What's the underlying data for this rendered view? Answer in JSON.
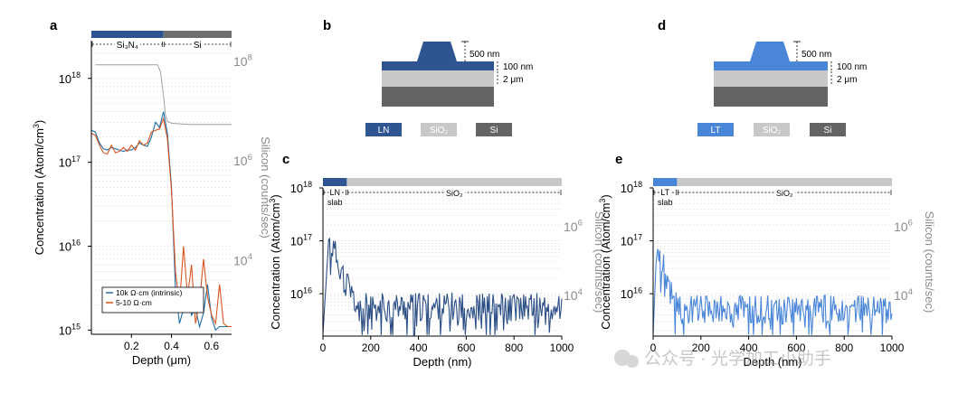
{
  "panels": {
    "a": {
      "letter": "a"
    },
    "b": {
      "letter": "b"
    },
    "c": {
      "letter": "c"
    },
    "d": {
      "letter": "d"
    },
    "e": {
      "letter": "e"
    }
  },
  "schematics": {
    "b": {
      "ridge_dim": "500 nm",
      "slab_dim": "100 nm",
      "oxide_dim": "2 μm",
      "legend": [
        {
          "label": "LN",
          "color": "#2e5591"
        },
        {
          "label": "SiO₂",
          "color": "#c8c8c8"
        },
        {
          "label": "Si",
          "color": "#646464"
        }
      ],
      "core_color": "#2e5591"
    },
    "d": {
      "ridge_dim": "500 nm",
      "slab_dim": "100 nm",
      "oxide_dim": "2 μm",
      "legend": [
        {
          "label": "LT",
          "color": "#4a86d8"
        },
        {
          "label": "SiO₂",
          "color": "#c8c8c8"
        },
        {
          "label": "Si",
          "color": "#646464"
        }
      ],
      "core_color": "#4a86d8"
    }
  },
  "colors": {
    "series_blue": "#1f6fa8",
    "series_orange": "#d9541e",
    "silicon_gray": "#a0a0a0",
    "ln_line": "#2c4f86",
    "lt_line": "#4a86d8",
    "axis_gray": "#8c8c8c"
  },
  "watermark": {
    "text": "公众号 · 光学加工小助手"
  },
  "chart_data": [
    {
      "id": "a",
      "type": "line",
      "xlabel": "Depth (μm)",
      "ylabel": "Concentration (Atom/cm³)",
      "y2label": "Silicon (counts/sec)",
      "xlim": [
        0,
        0.7
      ],
      "ylim_log": [
        14.95,
        18.45
      ],
      "y2lim_log": [
        2.5,
        8.4
      ],
      "xticks": [
        0.2,
        0.4,
        0.6
      ],
      "xtick_labels": [
        "0.2",
        "0.4",
        "0.6"
      ],
      "yticks": [
        {
          "label": "10",
          "sup": "15",
          "v": 15
        },
        {
          "label": "10",
          "sup": "16",
          "v": 16
        },
        {
          "label": "10",
          "sup": "17",
          "v": 17
        },
        {
          "label": "10",
          "sup": "18",
          "v": 18
        }
      ],
      "y2ticks": [
        {
          "label": "10",
          "sup": "4",
          "v": 4
        },
        {
          "label": "10",
          "sup": "6",
          "v": 6
        },
        {
          "label": "10",
          "sup": "8",
          "v": 8
        }
      ],
      "material_bar": [
        {
          "label": "Si₃N₄",
          "from": 0,
          "to": 0.36,
          "color": "#2e5591"
        },
        {
          "label": "Si",
          "from": 0.36,
          "to": 0.7,
          "color": "#6e6e6e"
        }
      ],
      "legend": [
        {
          "label": "10k Ω·cm (intrinsic)",
          "color": "#1f6fa8"
        },
        {
          "label": "5-10 Ω·cm",
          "color": "#d9541e"
        }
      ],
      "series": [
        {
          "name": "10k Ω·cm (intrinsic)",
          "color": "#1f6fa8",
          "x": [
            0.0,
            0.02,
            0.04,
            0.06,
            0.08,
            0.1,
            0.12,
            0.14,
            0.16,
            0.18,
            0.2,
            0.22,
            0.24,
            0.26,
            0.28,
            0.3,
            0.32,
            0.34,
            0.36,
            0.38,
            0.4,
            0.42,
            0.44,
            0.46,
            0.48,
            0.5,
            0.52,
            0.54,
            0.56,
            0.58,
            0.6,
            0.62,
            0.64,
            0.66,
            0.68,
            0.7
          ],
          "y": [
            2.4e+17,
            2.3e+17,
            1.7e+17,
            1.45e+17,
            1.4e+17,
            1.5e+17,
            1.45e+17,
            1.4e+17,
            1.35e+17,
            1.4e+17,
            1.4e+17,
            1.5e+17,
            1.7e+17,
            1.6e+17,
            1.55e+17,
            2e+17,
            3e+17,
            2.6e+17,
            4e+17,
            2.2e+17,
            5e+16,
            3000000000000000.0,
            1200000000000000.0,
            1800000000000000.0,
            3000000000000000.0,
            1500000000000000.0,
            1800000000000000.0,
            1100000000000000.0,
            1600000000000000.0,
            3500000000000000.0,
            1400000000000000.0,
            1000000000000000.0,
            1100000000000000.0,
            1100000000000000.0,
            1100000000000000.0,
            1100000000000000.0
          ]
        },
        {
          "name": "5-10 Ω·cm",
          "color": "#d9541e",
          "x": [
            0.0,
            0.02,
            0.04,
            0.06,
            0.08,
            0.1,
            0.12,
            0.14,
            0.16,
            0.18,
            0.2,
            0.22,
            0.24,
            0.26,
            0.28,
            0.3,
            0.32,
            0.34,
            0.36,
            0.38,
            0.4,
            0.42,
            0.44,
            0.46,
            0.48,
            0.5,
            0.52,
            0.54,
            0.56,
            0.58,
            0.6,
            0.62,
            0.64,
            0.66,
            0.68,
            0.7
          ],
          "y": [
            2.2e+17,
            2.1e+17,
            1.6e+17,
            1.3e+17,
            1.25e+17,
            1.6e+17,
            1.3e+17,
            1.35e+17,
            1.5e+17,
            1.35e+17,
            1.6e+17,
            1.4e+17,
            1.8e+17,
            1.6e+17,
            1.7e+17,
            2.3e+17,
            2.4e+17,
            2.5e+17,
            3.3e+17,
            1.9e+17,
            4.5e+16,
            5000000000000000.0,
            2000000000000000.0,
            1e+16,
            2500000000000000.0,
            6000000000000000.0,
            1200000000000000.0,
            2200000000000000.0,
            7000000000000000.0,
            2500000000000000.0,
            1500000000000000.0,
            1200000000000000.0,
            3500000000000000.0,
            1200000000000000.0,
            1100000000000000.0,
            1100000000000000.0
          ]
        },
        {
          "name": "Silicon",
          "axis": "y2",
          "color": "#a0a0a0",
          "x": [
            0.02,
            0.1,
            0.2,
            0.3,
            0.33,
            0.345,
            0.36,
            0.37,
            0.38,
            0.4,
            0.45,
            0.5,
            0.6,
            0.7
          ],
          "y": [
            82000000.0,
            82000000.0,
            82000000.0,
            82000000.0,
            82000000.0,
            60000000.0,
            20000000.0,
            8000000.0,
            6000000.0,
            5500000.0,
            5300000.0,
            5200000.0,
            5200000.0,
            5200000.0
          ]
        }
      ]
    },
    {
      "id": "c",
      "type": "line",
      "xlabel": "Depth (nm)",
      "ylabel": "Concentration (Atom/cm³)",
      "y2label": "Silicon (counts/sec)",
      "xlim": [
        0,
        1000
      ],
      "ylim_log": [
        15.2,
        18.0
      ],
      "y2lim_log": [
        2.8,
        7.1
      ],
      "xticks": [
        0,
        200,
        400,
        600,
        800,
        1000
      ],
      "xtick_labels": [
        "0",
        "200",
        "400",
        "600",
        "800",
        "1000"
      ],
      "yticks": [
        {
          "label": "10",
          "sup": "16",
          "v": 16
        },
        {
          "label": "10",
          "sup": "17",
          "v": 17
        },
        {
          "label": "10",
          "sup": "18",
          "v": 18
        }
      ],
      "y2ticks": [
        {
          "label": "10",
          "sup": "4",
          "v": 4
        },
        {
          "label": "10",
          "sup": "6",
          "v": 6
        }
      ],
      "material_bar": [
        {
          "label": "LN slab",
          "from": 0,
          "to": 100,
          "color": "#2e5591"
        },
        {
          "label": "SiO₂",
          "from": 100,
          "to": 1000,
          "color": "#c8c8c8"
        }
      ],
      "series": [
        {
          "name": "LN",
          "color": "#2c4f86",
          "decay_peak": 1.1e+17,
          "peak_x": 25,
          "floor_log": [
            15.55,
            15.95
          ],
          "step_nm": 4,
          "seed": 11
        }
      ]
    },
    {
      "id": "e",
      "type": "line",
      "xlabel": "Depth (nm)",
      "ylabel": "Concentration (Atom/cm³)",
      "y2label": "Silicon (counts/sec)",
      "xlim": [
        0,
        1000
      ],
      "ylim_log": [
        15.2,
        18.0
      ],
      "y2lim_log": [
        2.8,
        7.1
      ],
      "xticks": [
        0,
        200,
        400,
        600,
        800,
        1000
      ],
      "xtick_labels": [
        "0",
        "200",
        "400",
        "600",
        "800",
        "1000"
      ],
      "yticks": [
        {
          "label": "10",
          "sup": "16",
          "v": 16
        },
        {
          "label": "10",
          "sup": "17",
          "v": 17
        },
        {
          "label": "10",
          "sup": "18",
          "v": 18
        }
      ],
      "y2ticks": [
        {
          "label": "10",
          "sup": "4",
          "v": 4
        },
        {
          "label": "10",
          "sup": "6",
          "v": 6
        }
      ],
      "material_bar": [
        {
          "label": "LT slab",
          "from": 0,
          "to": 100,
          "color": "#4a86d8"
        },
        {
          "label": "SiO₂",
          "from": 100,
          "to": 1000,
          "color": "#c8c8c8"
        }
      ],
      "series": [
        {
          "name": "LT",
          "color": "#4a86d8",
          "decay_peak": 7e+16,
          "peak_x": 15,
          "floor_log": [
            15.5,
            15.9
          ],
          "step_nm": 4,
          "seed": 29
        }
      ]
    }
  ]
}
